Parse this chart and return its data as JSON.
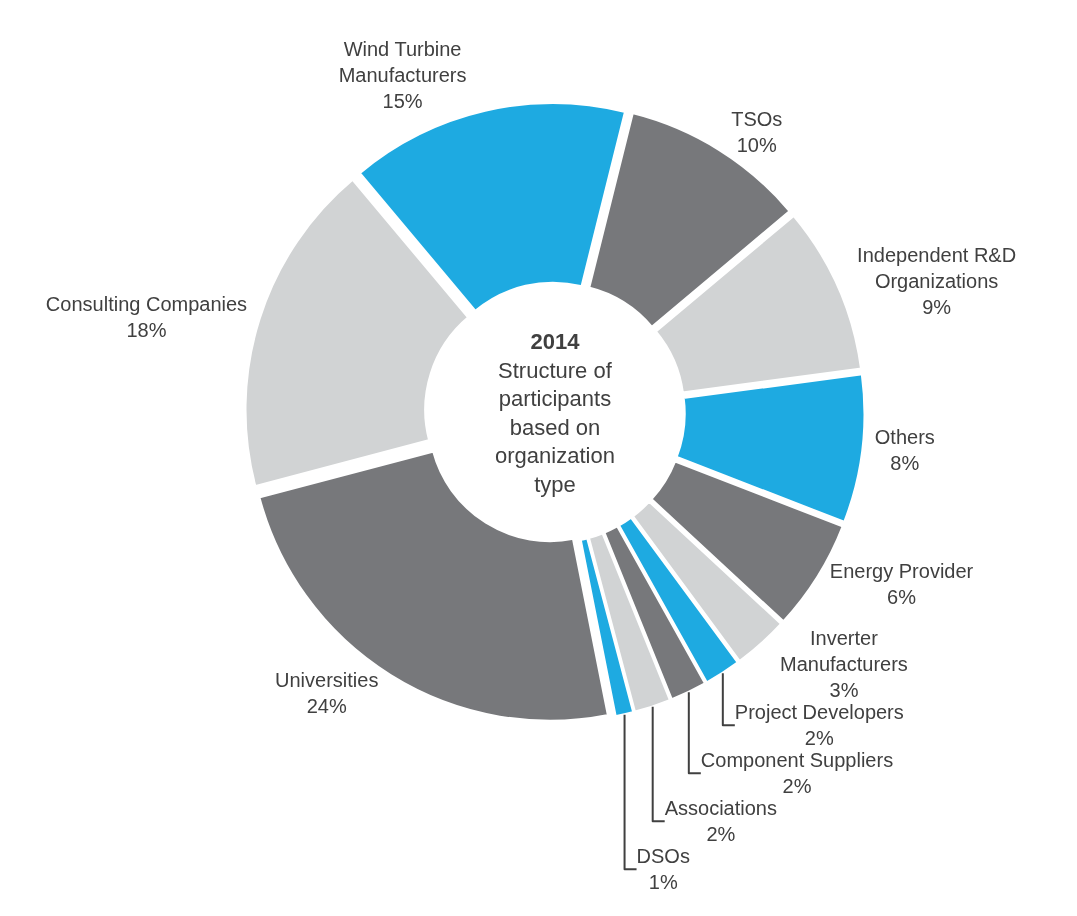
{
  "chart_data": {
    "type": "donut",
    "title": "2014",
    "subtitle": "Structure of participants based on organization type",
    "categories": [
      "Wind Turbine Manufacturers",
      "TSOs",
      "Independent R&D Organizations",
      "Others",
      "Energy Provider",
      "Inverter Manufacturers",
      "Project Developers",
      "Component Suppliers",
      "Associations",
      "DSOs",
      "Universities",
      "Consulting Companies"
    ],
    "values": [
      15,
      10,
      9,
      8,
      6,
      3,
      2,
      2,
      2,
      1,
      24,
      18
    ],
    "value_labels": [
      "15%",
      "10%",
      "9%",
      "8%",
      "6%",
      "3%",
      "2%",
      "2%",
      "2%",
      "1%",
      "24%",
      "18%"
    ],
    "colors": [
      "#1eaae1",
      "#77787b",
      "#d1d3d4",
      "#1eaae1",
      "#77787b",
      "#d1d3d4",
      "#1eaae1",
      "#77787b",
      "#d1d3d4",
      "#1eaae1",
      "#77787b",
      "#d1d3d4"
    ],
    "legend": false
  }
}
